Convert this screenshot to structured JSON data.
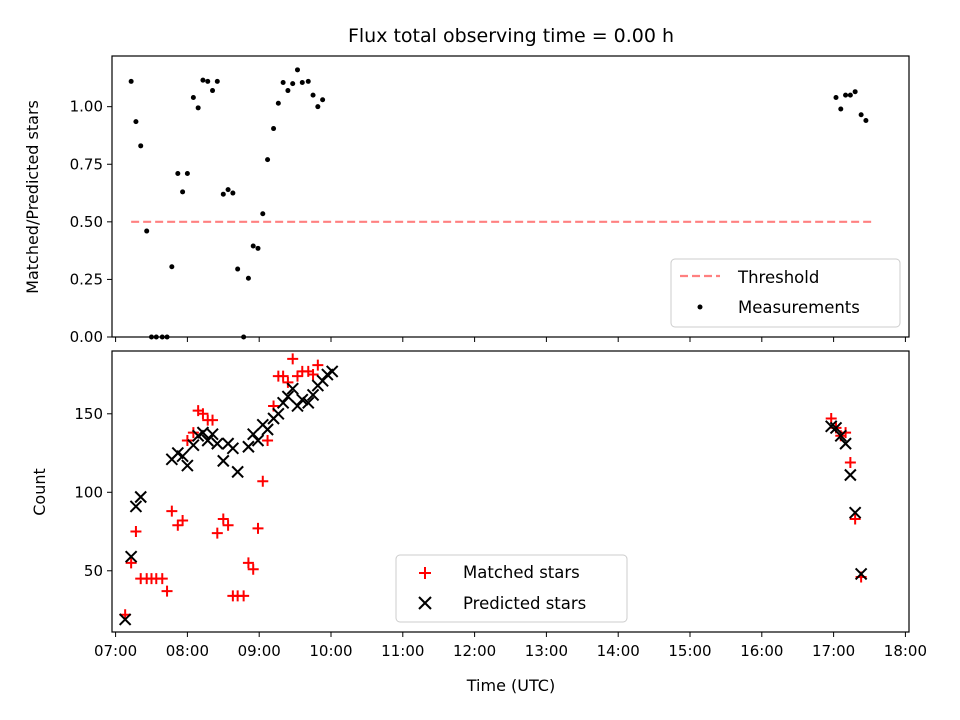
{
  "figure": {
    "title": "Flux total observing time = 0.00 h"
  },
  "chart_data": [
    {
      "type": "scatter",
      "title": "Flux total observing time = 0.00 h",
      "xlabel": "",
      "ylabel": "Matched/Predicted stars",
      "xlim": [
        "06:57",
        "18:03"
      ],
      "ylim": [
        0,
        1.22
      ],
      "yticks": [
        0.0,
        0.25,
        0.5,
        0.75,
        1.0
      ],
      "ytick_labels": [
        "0.00",
        "0.25",
        "0.50",
        "0.75",
        "1.00"
      ],
      "grid": false,
      "legend": "bottom-right",
      "series": [
        {
          "name": "Threshold",
          "kind": "dashed-line",
          "color": "#ff8080",
          "points": [
            [
              "07:13",
              0.5
            ],
            [
              "17:32",
              0.5
            ]
          ]
        },
        {
          "name": "Measurements",
          "kind": "points",
          "color": "#000000",
          "points": [
            [
              "07:13",
              1.11
            ],
            [
              "07:17",
              0.935
            ],
            [
              "07:21",
              0.83
            ],
            [
              "07:26",
              0.46
            ],
            [
              "07:30",
              0.0
            ],
            [
              "07:34",
              0.0
            ],
            [
              "07:39",
              0.0
            ],
            [
              "07:43",
              0.0
            ],
            [
              "07:47",
              0.305
            ],
            [
              "07:52",
              0.71
            ],
            [
              "07:56",
              0.63
            ],
            [
              "08:00",
              0.71
            ],
            [
              "08:05",
              1.04
            ],
            [
              "08:09",
              0.995
            ],
            [
              "08:13",
              1.115
            ],
            [
              "08:17",
              1.11
            ],
            [
              "08:21",
              1.07
            ],
            [
              "08:25",
              1.11
            ],
            [
              "08:30",
              0.62
            ],
            [
              "08:34",
              0.64
            ],
            [
              "08:38",
              0.625
            ],
            [
              "08:42",
              0.295
            ],
            [
              "08:47",
              0.0
            ],
            [
              "08:51",
              0.255
            ],
            [
              "08:55",
              0.395
            ],
            [
              "08:59",
              0.385
            ],
            [
              "09:03",
              0.535
            ],
            [
              "09:07",
              0.77
            ],
            [
              "09:12",
              0.905
            ],
            [
              "09:16",
              1.015
            ],
            [
              "09:20",
              1.105
            ],
            [
              "09:24",
              1.07
            ],
            [
              "09:28",
              1.1
            ],
            [
              "09:32",
              1.16
            ],
            [
              "09:36",
              1.105
            ],
            [
              "09:41",
              1.11
            ],
            [
              "09:45",
              1.05
            ],
            [
              "09:49",
              1.0
            ],
            [
              "09:53",
              1.03
            ],
            [
              "17:02",
              1.04
            ],
            [
              "17:06",
              0.99
            ],
            [
              "17:10",
              1.05
            ],
            [
              "17:14",
              1.05
            ],
            [
              "17:18",
              1.065
            ],
            [
              "17:23",
              0.965
            ],
            [
              "17:27",
              0.94
            ]
          ]
        }
      ]
    },
    {
      "type": "scatter",
      "xlabel": "Time (UTC)",
      "ylabel": "Count",
      "xlim": [
        "06:57",
        "18:03"
      ],
      "ylim": [
        11,
        190
      ],
      "yticks": [
        50,
        100,
        150
      ],
      "ytick_labels": [
        "50",
        "100",
        "150"
      ],
      "xticks": [
        "07:00",
        "08:00",
        "09:00",
        "10:00",
        "11:00",
        "12:00",
        "13:00",
        "14:00",
        "15:00",
        "16:00",
        "17:00",
        "18:00"
      ],
      "grid": false,
      "legend": "bottom-center",
      "series": [
        {
          "name": "Matched stars",
          "kind": "plus",
          "color": "#ff0000",
          "points": [
            [
              "07:08",
              22
            ],
            [
              "07:13",
              55
            ],
            [
              "07:17",
              75
            ],
            [
              "07:21",
              45
            ],
            [
              "07:26",
              45
            ],
            [
              "07:30",
              45
            ],
            [
              "07:34",
              45
            ],
            [
              "07:39",
              45
            ],
            [
              "07:43",
              37
            ],
            [
              "07:47",
              88
            ],
            [
              "07:52",
              79
            ],
            [
              "07:56",
              82
            ],
            [
              "08:00",
              133
            ],
            [
              "08:05",
              138
            ],
            [
              "08:09",
              152
            ],
            [
              "08:13",
              150
            ],
            [
              "08:17",
              146
            ],
            [
              "08:21",
              146
            ],
            [
              "08:25",
              74
            ],
            [
              "08:30",
              83
            ],
            [
              "08:34",
              79
            ],
            [
              "08:38",
              34
            ],
            [
              "08:42",
              34
            ],
            [
              "08:47",
              34
            ],
            [
              "08:51",
              55
            ],
            [
              "08:55",
              51
            ],
            [
              "08:59",
              77
            ],
            [
              "09:03",
              107
            ],
            [
              "09:07",
              133
            ],
            [
              "09:12",
              155
            ],
            [
              "09:16",
              174
            ],
            [
              "09:20",
              174
            ],
            [
              "09:24",
              170
            ],
            [
              "09:28",
              185
            ],
            [
              "09:32",
              174
            ],
            [
              "09:36",
              177
            ],
            [
              "09:41",
              177
            ],
            [
              "09:45",
              175
            ],
            [
              "09:49",
              181
            ],
            [
              "16:58",
              147
            ],
            [
              "17:02",
              141
            ],
            [
              "17:06",
              136
            ],
            [
              "17:10",
              138
            ],
            [
              "17:14",
              119
            ],
            [
              "17:18",
              83
            ],
            [
              "17:23",
              46
            ]
          ]
        },
        {
          "name": "Predicted stars",
          "kind": "cross",
          "color": "#000000",
          "points": [
            [
              "07:08",
              19
            ],
            [
              "07:13",
              59
            ],
            [
              "07:17",
              91
            ],
            [
              "07:21",
              97
            ],
            [
              "07:47",
              121
            ],
            [
              "07:52",
              125
            ],
            [
              "07:56",
              123
            ],
            [
              "08:00",
              117
            ],
            [
              "08:05",
              130
            ],
            [
              "08:09",
              136
            ],
            [
              "08:13",
              138
            ],
            [
              "08:17",
              133
            ],
            [
              "08:21",
              137
            ],
            [
              "08:25",
              131
            ],
            [
              "08:30",
              120
            ],
            [
              "08:34",
              131
            ],
            [
              "08:38",
              128
            ],
            [
              "08:42",
              113
            ],
            [
              "08:51",
              129
            ],
            [
              "08:55",
              137
            ],
            [
              "08:59",
              133
            ],
            [
              "09:03",
              143
            ],
            [
              "09:07",
              140
            ],
            [
              "09:12",
              147
            ],
            [
              "09:16",
              150
            ],
            [
              "09:20",
              157
            ],
            [
              "09:24",
              161
            ],
            [
              "09:28",
              166
            ],
            [
              "09:32",
              155
            ],
            [
              "09:36",
              159
            ],
            [
              "09:41",
              157
            ],
            [
              "09:45",
              162
            ],
            [
              "09:49",
              168
            ],
            [
              "09:53",
              171
            ],
            [
              "09:57",
              175
            ],
            [
              "10:01",
              177
            ],
            [
              "16:58",
              142
            ],
            [
              "17:02",
              141
            ],
            [
              "17:06",
              136
            ],
            [
              "17:10",
              131
            ],
            [
              "17:14",
              111
            ],
            [
              "17:18",
              87
            ],
            [
              "17:23",
              48
            ]
          ]
        }
      ]
    }
  ]
}
